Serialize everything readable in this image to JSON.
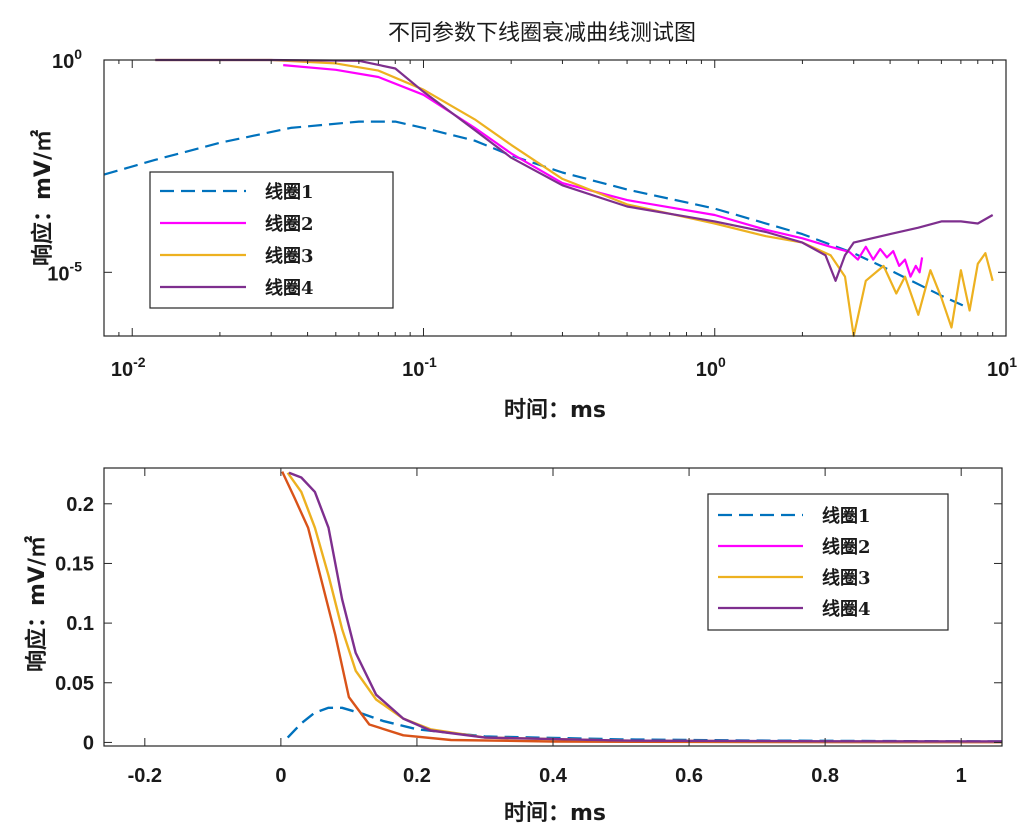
{
  "chart_data": [
    {
      "type": "line",
      "title": "不同参数下线圈衰减曲线测试图",
      "xlabel": "时间：ms",
      "ylabel": "响应：mV/㎡",
      "xscale": "log",
      "yscale": "log",
      "xlim": [
        0.008,
        10
      ],
      "ylim_exp": [
        -6.5,
        0
      ],
      "x_ticks": [
        {
          "exp": -2,
          "label": "10-2",
          "base": "10",
          "sup": "-2"
        },
        {
          "exp": -1,
          "label": "10-1",
          "base": "10",
          "sup": "-1"
        },
        {
          "exp": 0,
          "label": "100",
          "base": "10",
          "sup": "0"
        },
        {
          "exp": 1,
          "label": "101",
          "base": "10",
          "sup": "1"
        }
      ],
      "y_ticks": [
        {
          "exp": 0,
          "label": "100",
          "base": "10",
          "sup": "0"
        },
        {
          "exp": -5,
          "label": "10-5",
          "base": "10",
          "sup": "-5"
        }
      ],
      "legend": {
        "position": "lower-left"
      },
      "series": [
        {
          "name": "线圈1",
          "color": "#0072BD",
          "dashed": true,
          "points": [
            [
              0.008,
              -2.7
            ],
            [
              0.012,
              -2.35
            ],
            [
              0.02,
              -1.95
            ],
            [
              0.035,
              -1.6
            ],
            [
              0.06,
              -1.45
            ],
            [
              0.08,
              -1.45
            ],
            [
              0.1,
              -1.6
            ],
            [
              0.15,
              -1.9
            ],
            [
              0.2,
              -2.25
            ],
            [
              0.3,
              -2.65
            ],
            [
              0.5,
              -3.05
            ],
            [
              1,
              -3.5
            ],
            [
              2,
              -4.1
            ],
            [
              3,
              -4.55
            ],
            [
              4,
              -4.95
            ],
            [
              6,
              -5.55
            ],
            [
              7.5,
              -5.85
            ]
          ]
        },
        {
          "name": "线圈2",
          "color": "#FF00FF",
          "dashed": false,
          "points": [
            [
              0.033,
              -0.12
            ],
            [
              0.05,
              -0.23
            ],
            [
              0.07,
              -0.4
            ],
            [
              0.1,
              -0.82
            ],
            [
              0.15,
              -1.6
            ],
            [
              0.2,
              -2.2
            ],
            [
              0.3,
              -2.9
            ],
            [
              0.5,
              -3.3
            ],
            [
              1,
              -3.65
            ],
            [
              1.5,
              -4.0
            ],
            [
              2,
              -4.2
            ],
            [
              2.5,
              -4.4
            ],
            [
              2.9,
              -4.52
            ],
            [
              3.1,
              -4.7
            ],
            [
              3.3,
              -4.4
            ],
            [
              3.5,
              -4.7
            ],
            [
              3.7,
              -4.45
            ],
            [
              3.9,
              -4.65
            ],
            [
              4.1,
              -4.5
            ],
            [
              4.3,
              -4.85
            ],
            [
              4.5,
              -4.7
            ],
            [
              4.7,
              -5.1
            ],
            [
              4.9,
              -4.85
            ],
            [
              5.05,
              -5.0
            ],
            [
              5.15,
              -4.65
            ]
          ]
        },
        {
          "name": "线圈3",
          "color": "#EDB120",
          "dashed": false,
          "points": [
            [
              0.012,
              0.0
            ],
            [
              0.03,
              0.0
            ],
            [
              0.05,
              -0.08
            ],
            [
              0.07,
              -0.25
            ],
            [
              0.1,
              -0.7
            ],
            [
              0.15,
              -1.4
            ],
            [
              0.2,
              -2.0
            ],
            [
              0.3,
              -2.8
            ],
            [
              0.5,
              -3.4
            ],
            [
              1,
              -3.85
            ],
            [
              1.5,
              -4.15
            ],
            [
              2,
              -4.3
            ],
            [
              2.5,
              -4.6
            ],
            [
              2.8,
              -5.1
            ],
            [
              3.0,
              -6.5
            ],
            [
              3.3,
              -5.2
            ],
            [
              3.8,
              -4.85
            ],
            [
              4.2,
              -5.5
            ],
            [
              4.5,
              -5.1
            ],
            [
              5,
              -6.0
            ],
            [
              5.5,
              -4.95
            ],
            [
              6,
              -5.6
            ],
            [
              6.5,
              -6.3
            ],
            [
              7,
              -4.95
            ],
            [
              7.5,
              -5.9
            ],
            [
              8,
              -4.8
            ],
            [
              8.5,
              -4.55
            ],
            [
              9.0,
              -5.2
            ]
          ]
        },
        {
          "name": "线圈4",
          "color": "#7E2F8E",
          "dashed": false,
          "points": [
            [
              0.012,
              0.0
            ],
            [
              0.03,
              0.0
            ],
            [
              0.06,
              -0.02
            ],
            [
              0.08,
              -0.2
            ],
            [
              0.1,
              -0.75
            ],
            [
              0.15,
              -1.65
            ],
            [
              0.2,
              -2.3
            ],
            [
              0.3,
              -2.95
            ],
            [
              0.5,
              -3.45
            ],
            [
              1,
              -3.8
            ],
            [
              1.5,
              -4.05
            ],
            [
              2,
              -4.3
            ],
            [
              2.4,
              -4.6
            ],
            [
              2.6,
              -5.2
            ],
            [
              2.8,
              -4.6
            ],
            [
              3,
              -4.3
            ],
            [
              4,
              -4.1
            ],
            [
              5,
              -3.95
            ],
            [
              6,
              -3.8
            ],
            [
              7,
              -3.8
            ],
            [
              8,
              -3.85
            ],
            [
              9,
              -3.65
            ]
          ]
        }
      ]
    },
    {
      "type": "line",
      "xlabel": "时间：ms",
      "ylabel": "响应：mV/㎡",
      "xlim": [
        -0.26,
        1.06
      ],
      "ylim": [
        -0.003,
        0.23
      ],
      "x_ticks": [
        -0.2,
        0,
        0.2,
        0.4,
        0.6,
        0.8,
        1
      ],
      "x_tick_labels": [
        "-0.2",
        "0",
        "0.2",
        "0.4",
        "0.6",
        "0.8",
        "1"
      ],
      "y_ticks": [
        0,
        0.05,
        0.1,
        0.15,
        0.2
      ],
      "y_tick_labels": [
        "0",
        "0.05",
        "0.1",
        "0.15",
        "0.2"
      ],
      "legend": {
        "position": "top-right"
      },
      "series": [
        {
          "name": "线圈1",
          "color": "#0072BD",
          "dashed": true,
          "points": [
            [
              0.01,
              0.004
            ],
            [
              0.03,
              0.016
            ],
            [
              0.05,
              0.025
            ],
            [
              0.07,
              0.029
            ],
            [
              0.09,
              0.029
            ],
            [
              0.12,
              0.024
            ],
            [
              0.15,
              0.018
            ],
            [
              0.2,
              0.011
            ],
            [
              0.3,
              0.005
            ],
            [
              0.5,
              0.0025
            ],
            [
              0.7,
              0.0015
            ],
            [
              1.06,
              0.0008
            ]
          ]
        },
        {
          "name": "线圈2",
          "color": "#FF00FF",
          "dashed": false,
          "visible_in_plot": false,
          "points": []
        },
        {
          "name": "",
          "color": "#D95319",
          "dashed": false,
          "points": [
            [
              0.002,
              0.227
            ],
            [
              0.02,
              0.205
            ],
            [
              0.04,
              0.18
            ],
            [
              0.06,
              0.135
            ],
            [
              0.08,
              0.09
            ],
            [
              0.1,
              0.038
            ],
            [
              0.13,
              0.015
            ],
            [
              0.18,
              0.006
            ],
            [
              0.25,
              0.002
            ],
            [
              0.4,
              0.0008
            ],
            [
              0.7,
              0.0003
            ],
            [
              1.06,
              0.0002
            ]
          ]
        },
        {
          "name": "线圈3",
          "color": "#EDB120",
          "dashed": false,
          "points": [
            [
              0.01,
              0.226
            ],
            [
              0.03,
              0.21
            ],
            [
              0.05,
              0.18
            ],
            [
              0.07,
              0.14
            ],
            [
              0.09,
              0.095
            ],
            [
              0.11,
              0.06
            ],
            [
              0.14,
              0.036
            ],
            [
              0.18,
              0.02
            ],
            [
              0.22,
              0.011
            ],
            [
              0.3,
              0.004
            ],
            [
              0.5,
              0.0015
            ],
            [
              0.8,
              0.0007
            ],
            [
              1.06,
              0.0005
            ]
          ]
        },
        {
          "name": "线圈4",
          "color": "#7E2F8E",
          "dashed": false,
          "points": [
            [
              0.012,
              0.226
            ],
            [
              0.03,
              0.222
            ],
            [
              0.05,
              0.21
            ],
            [
              0.07,
              0.18
            ],
            [
              0.09,
              0.12
            ],
            [
              0.11,
              0.075
            ],
            [
              0.14,
              0.04
            ],
            [
              0.18,
              0.02
            ],
            [
              0.22,
              0.01
            ],
            [
              0.3,
              0.004
            ],
            [
              0.5,
              0.0015
            ],
            [
              0.8,
              0.0009
            ],
            [
              1.06,
              0.0008
            ]
          ]
        }
      ]
    }
  ]
}
